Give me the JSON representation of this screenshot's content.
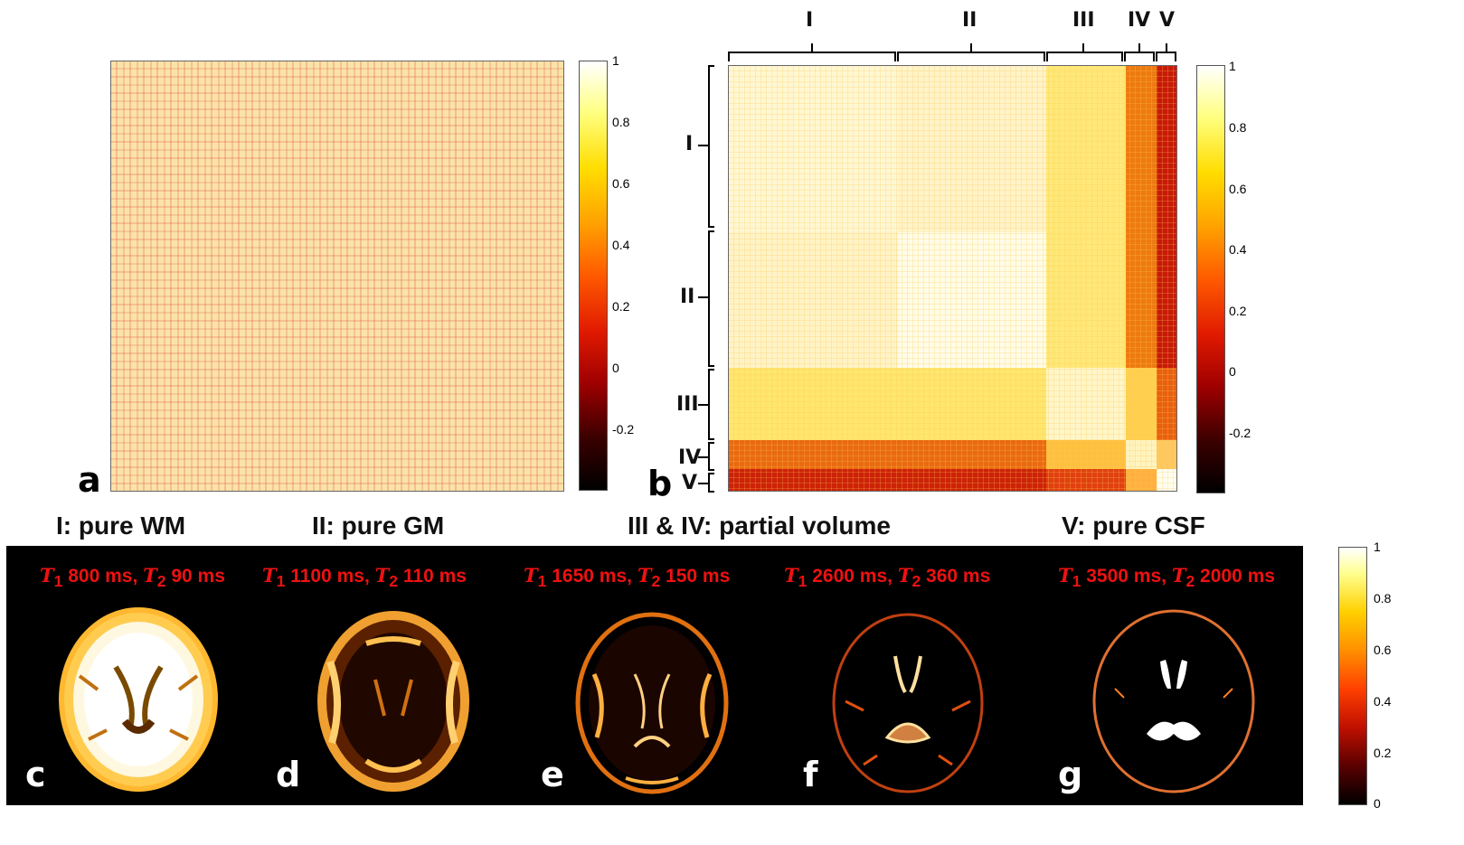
{
  "panels": {
    "a": {
      "letter": "a"
    },
    "b": {
      "letter": "b",
      "groups": [
        "I",
        "II",
        "III",
        "IV",
        "V"
      ]
    },
    "c": {
      "letter": "c",
      "param": {
        "t1_label": "T",
        "t1_sub": "1",
        "t1_val": "800 ms,",
        "t2_label": "T",
        "t2_sub": "2",
        "t2_val": "90 ms"
      }
    },
    "d": {
      "letter": "d",
      "param": {
        "t1_label": "T",
        "t1_sub": "1",
        "t1_val": "1100 ms,",
        "t2_label": "T",
        "t2_sub": "2",
        "t2_val": "110 ms"
      }
    },
    "e": {
      "letter": "e",
      "param": {
        "t1_label": "T",
        "t1_sub": "1",
        "t1_val": "1650 ms,",
        "t2_label": "T",
        "t2_sub": "2",
        "t2_val": "150 ms"
      }
    },
    "f": {
      "letter": "f",
      "param": {
        "t1_label": "T",
        "t1_sub": "1",
        "t1_val": "2600 ms,",
        "t2_label": "T",
        "t2_sub": "2",
        "t2_val": "360 ms"
      }
    },
    "g": {
      "letter": "g",
      "param": {
        "t1_label": "T",
        "t1_sub": "1",
        "t1_val": "3500 ms,",
        "t2_label": "T",
        "t2_sub": "2",
        "t2_val": "2000 ms"
      }
    }
  },
  "headings": {
    "wm": "I: pure WM",
    "gm": "II: pure GM",
    "pv": "III & IV:  partial volume",
    "csf": "V: pure CSF"
  },
  "colorbar_top": {
    "ticks": [
      "1",
      "0.8",
      "0.6",
      "0.4",
      "0.2",
      "0",
      "-0.2"
    ]
  },
  "colorbar_bottom": {
    "ticks": [
      "1",
      "0.8",
      "0.6",
      "0.4",
      "0.2",
      "0"
    ]
  },
  "colors": {
    "background_dark": "#000000",
    "param_red": "#ee1111"
  }
}
